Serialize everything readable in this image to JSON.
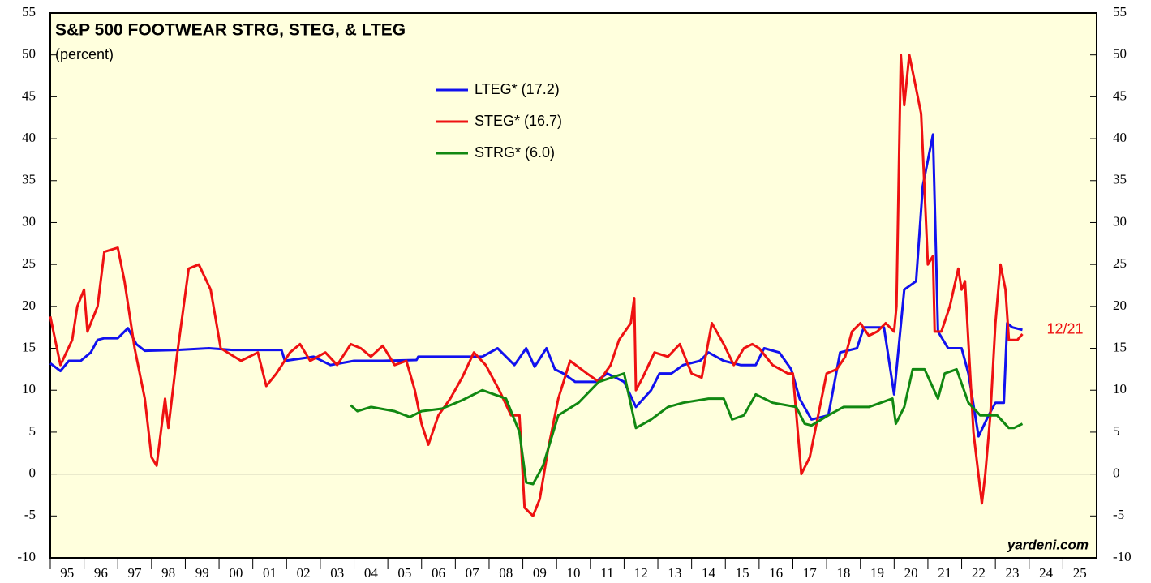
{
  "chart_data": {
    "type": "line",
    "title": "S&P 500 FOOTWEAR STRG, STEG, & LTEG",
    "subtitle": "(percent)",
    "source": "yardeni.com",
    "annotation": "12/21",
    "annotation_color": "#ee1111",
    "background": "#ffffdd",
    "xlim": [
      1995,
      2026
    ],
    "xticks": [
      {
        "value": 1995,
        "label": "95"
      },
      {
        "value": 1996,
        "label": "96"
      },
      {
        "value": 1997,
        "label": "97"
      },
      {
        "value": 1998,
        "label": "98"
      },
      {
        "value": 1999,
        "label": "99"
      },
      {
        "value": 2000,
        "label": "00"
      },
      {
        "value": 2001,
        "label": "01"
      },
      {
        "value": 2002,
        "label": "02"
      },
      {
        "value": 2003,
        "label": "03"
      },
      {
        "value": 2004,
        "label": "04"
      },
      {
        "value": 2005,
        "label": "05"
      },
      {
        "value": 2006,
        "label": "06"
      },
      {
        "value": 2007,
        "label": "07"
      },
      {
        "value": 2008,
        "label": "08"
      },
      {
        "value": 2009,
        "label": "09"
      },
      {
        "value": 2010,
        "label": "10"
      },
      {
        "value": 2011,
        "label": "11"
      },
      {
        "value": 2012,
        "label": "12"
      },
      {
        "value": 2013,
        "label": "13"
      },
      {
        "value": 2014,
        "label": "14"
      },
      {
        "value": 2015,
        "label": "15"
      },
      {
        "value": 2016,
        "label": "16"
      },
      {
        "value": 2017,
        "label": "17"
      },
      {
        "value": 2018,
        "label": "18"
      },
      {
        "value": 2019,
        "label": "19"
      },
      {
        "value": 2020,
        "label": "20"
      },
      {
        "value": 2021,
        "label": "21"
      },
      {
        "value": 2022,
        "label": "22"
      },
      {
        "value": 2023,
        "label": "23"
      },
      {
        "value": 2024,
        "label": "24"
      },
      {
        "value": 2025,
        "label": "25"
      }
    ],
    "ylim": [
      -10,
      55
    ],
    "yticks": [
      -10,
      -5,
      0,
      5,
      10,
      15,
      20,
      25,
      30,
      35,
      40,
      45,
      50,
      55
    ],
    "y2lim": [
      -10,
      55
    ],
    "y2ticks": [
      -10,
      -5,
      0,
      5,
      10,
      15,
      20,
      25,
      30,
      35,
      40,
      45,
      50,
      55
    ],
    "series": [
      {
        "name": "LTEG* (17.2)",
        "color": "#1111ee",
        "x": [
          1995,
          1995.3,
          1995.55,
          1995.9,
          1996.2,
          1996.4,
          1996.6,
          1997,
          1997.3,
          1997.55,
          1997.8,
          1998.75,
          1999.7,
          2000.4,
          2001.4,
          2001.85,
          2001.95,
          2002.8,
          2003.3,
          2004,
          2004.85,
          2005.85,
          2005.9,
          2007.8,
          2008.25,
          2008.75,
          2009.1,
          2009.35,
          2009.7,
          2009.95,
          2010.2,
          2010.55,
          2011.15,
          2011.5,
          2012,
          2012.35,
          2012.8,
          2013.05,
          2013.4,
          2013.75,
          2014.25,
          2014.5,
          2014.95,
          2015.45,
          2015.9,
          2016.15,
          2016.6,
          2016.95,
          2017.2,
          2017.55,
          2018.05,
          2018.4,
          2018.9,
          2019.1,
          2019.7,
          2020,
          2020.3,
          2020.65,
          2020.85,
          2021.15,
          2021.3,
          2021.6,
          2022,
          2022.2,
          2022.5,
          2022.8,
          2023,
          2023.25,
          2023.35,
          2023.5,
          2023.8
        ],
        "values": [
          13.2,
          12.3,
          13.5,
          13.5,
          14.5,
          16,
          16.2,
          16.2,
          17.4,
          15.5,
          14.7,
          14.8,
          15,
          14.8,
          14.8,
          14.8,
          13.5,
          14,
          13,
          13.5,
          13.5,
          13.6,
          14,
          14,
          15,
          13,
          15,
          12.8,
          15,
          12.5,
          12,
          11,
          11,
          12,
          11,
          8,
          10,
          12,
          12,
          13,
          13.5,
          14.5,
          13.5,
          13,
          13,
          15,
          14.5,
          12.5,
          9,
          6.5,
          7,
          14.5,
          15,
          17.5,
          17.5,
          9.5,
          22,
          23,
          34.4,
          40.5,
          17,
          15,
          15,
          12,
          4.5,
          7,
          8.5,
          8.5,
          18,
          17.5,
          17.2
        ]
      },
      {
        "name": "STEG* (16.7)",
        "color": "#ee1111",
        "x": [
          1995,
          1995.3,
          1995.65,
          1995.8,
          1996,
          1996.1,
          1996.4,
          1996.6,
          1997,
          1997.2,
          1997.5,
          1997.8,
          1998,
          1998.15,
          1998.4,
          1998.5,
          1998.75,
          1999.1,
          1999.4,
          1999.75,
          2000.05,
          2000.65,
          2001.15,
          2001.4,
          2001.7,
          2002.1,
          2002.4,
          2002.7,
          2003.15,
          2003.5,
          2003.9,
          2004.2,
          2004.5,
          2004.85,
          2005.2,
          2005.55,
          2005.8,
          2006,
          2006.2,
          2006.5,
          2006.85,
          2007.2,
          2007.55,
          2007.9,
          2008.3,
          2008.65,
          2008.9,
          2009.05,
          2009.3,
          2009.5,
          2009.75,
          2010.05,
          2010.4,
          2010.9,
          2011.25,
          2011.6,
          2011.85,
          2012.2,
          2012.3,
          2012.35,
          2012.55,
          2012.9,
          2013.3,
          2013.65,
          2014,
          2014.3,
          2014.6,
          2014.95,
          2015.25,
          2015.55,
          2015.8,
          2016,
          2016.4,
          2016.85,
          2017,
          2017.25,
          2017.5,
          2017.7,
          2018,
          2018.3,
          2018.55,
          2018.75,
          2019,
          2019.25,
          2019.5,
          2019.75,
          2020,
          2020.07,
          2020.2,
          2020.3,
          2020.45,
          2020.6,
          2020.8,
          2020.9,
          2021,
          2021.15,
          2021.2,
          2021.4,
          2021.65,
          2021.9,
          2022,
          2022.1,
          2022.35,
          2022.6,
          2022.7,
          2022.85,
          2023,
          2023.15,
          2023.3,
          2023.4,
          2023.65,
          2023.8
        ],
        "values": [
          18.8,
          13,
          16,
          20,
          22,
          17,
          20,
          26.5,
          27,
          23,
          15,
          9,
          2,
          1,
          9,
          5.5,
          14,
          24.5,
          25,
          22,
          15,
          13.5,
          14.5,
          10.5,
          12,
          14.5,
          15.5,
          13.5,
          14.5,
          13,
          15.5,
          15,
          14,
          15.3,
          13,
          13.5,
          10,
          6,
          3.5,
          7,
          9,
          11.5,
          14.5,
          13,
          10,
          7,
          7,
          -4,
          -5,
          -3,
          3,
          9,
          13.5,
          12,
          11,
          13,
          16,
          18,
          21,
          10,
          11.5,
          14.5,
          14,
          15.5,
          12,
          11.5,
          18,
          15.5,
          13,
          15,
          15.5,
          15,
          13,
          12,
          12,
          0,
          2,
          6,
          12,
          12.5,
          14,
          17,
          18,
          16.5,
          17,
          18,
          17,
          20,
          50,
          44,
          50,
          47,
          43,
          34,
          25,
          26,
          17,
          17,
          20,
          24.5,
          22,
          23,
          5,
          -3.5,
          0,
          7,
          18,
          25,
          22,
          16,
          16,
          16.7
        ]
      },
      {
        "name": "STRG* (6.0)",
        "color": "#118811",
        "x": [
          2003.9,
          2004.1,
          2004.5,
          2005.2,
          2005.65,
          2006,
          2006.6,
          2007.2,
          2007.8,
          2008.5,
          2008.9,
          2009.1,
          2009.3,
          2009.6,
          2010.05,
          2010.65,
          2011.25,
          2012,
          2012.35,
          2012.8,
          2013.3,
          2013.75,
          2014.5,
          2014.95,
          2015.2,
          2015.55,
          2015.9,
          2016.4,
          2017.1,
          2017.35,
          2017.55,
          2018.05,
          2018.5,
          2019.25,
          2019.95,
          2020.05,
          2020.3,
          2020.55,
          2020.9,
          2021.3,
          2021.5,
          2021.85,
          2022.2,
          2022.55,
          2023.05,
          2023.4,
          2023.55,
          2023.8
        ],
        "values": [
          8.2,
          7.5,
          8,
          7.5,
          6.8,
          7.5,
          7.8,
          8.8,
          10,
          9,
          5,
          -1,
          -1.2,
          1,
          7,
          8.5,
          11,
          12,
          5.5,
          6.5,
          8,
          8.5,
          9,
          9,
          6.5,
          7,
          9.5,
          8.5,
          8,
          6,
          5.8,
          7,
          8,
          8,
          9,
          6,
          8,
          12.5,
          12.5,
          9,
          12,
          12.5,
          8.5,
          7,
          7,
          5.5,
          5.5,
          6
        ]
      }
    ]
  }
}
